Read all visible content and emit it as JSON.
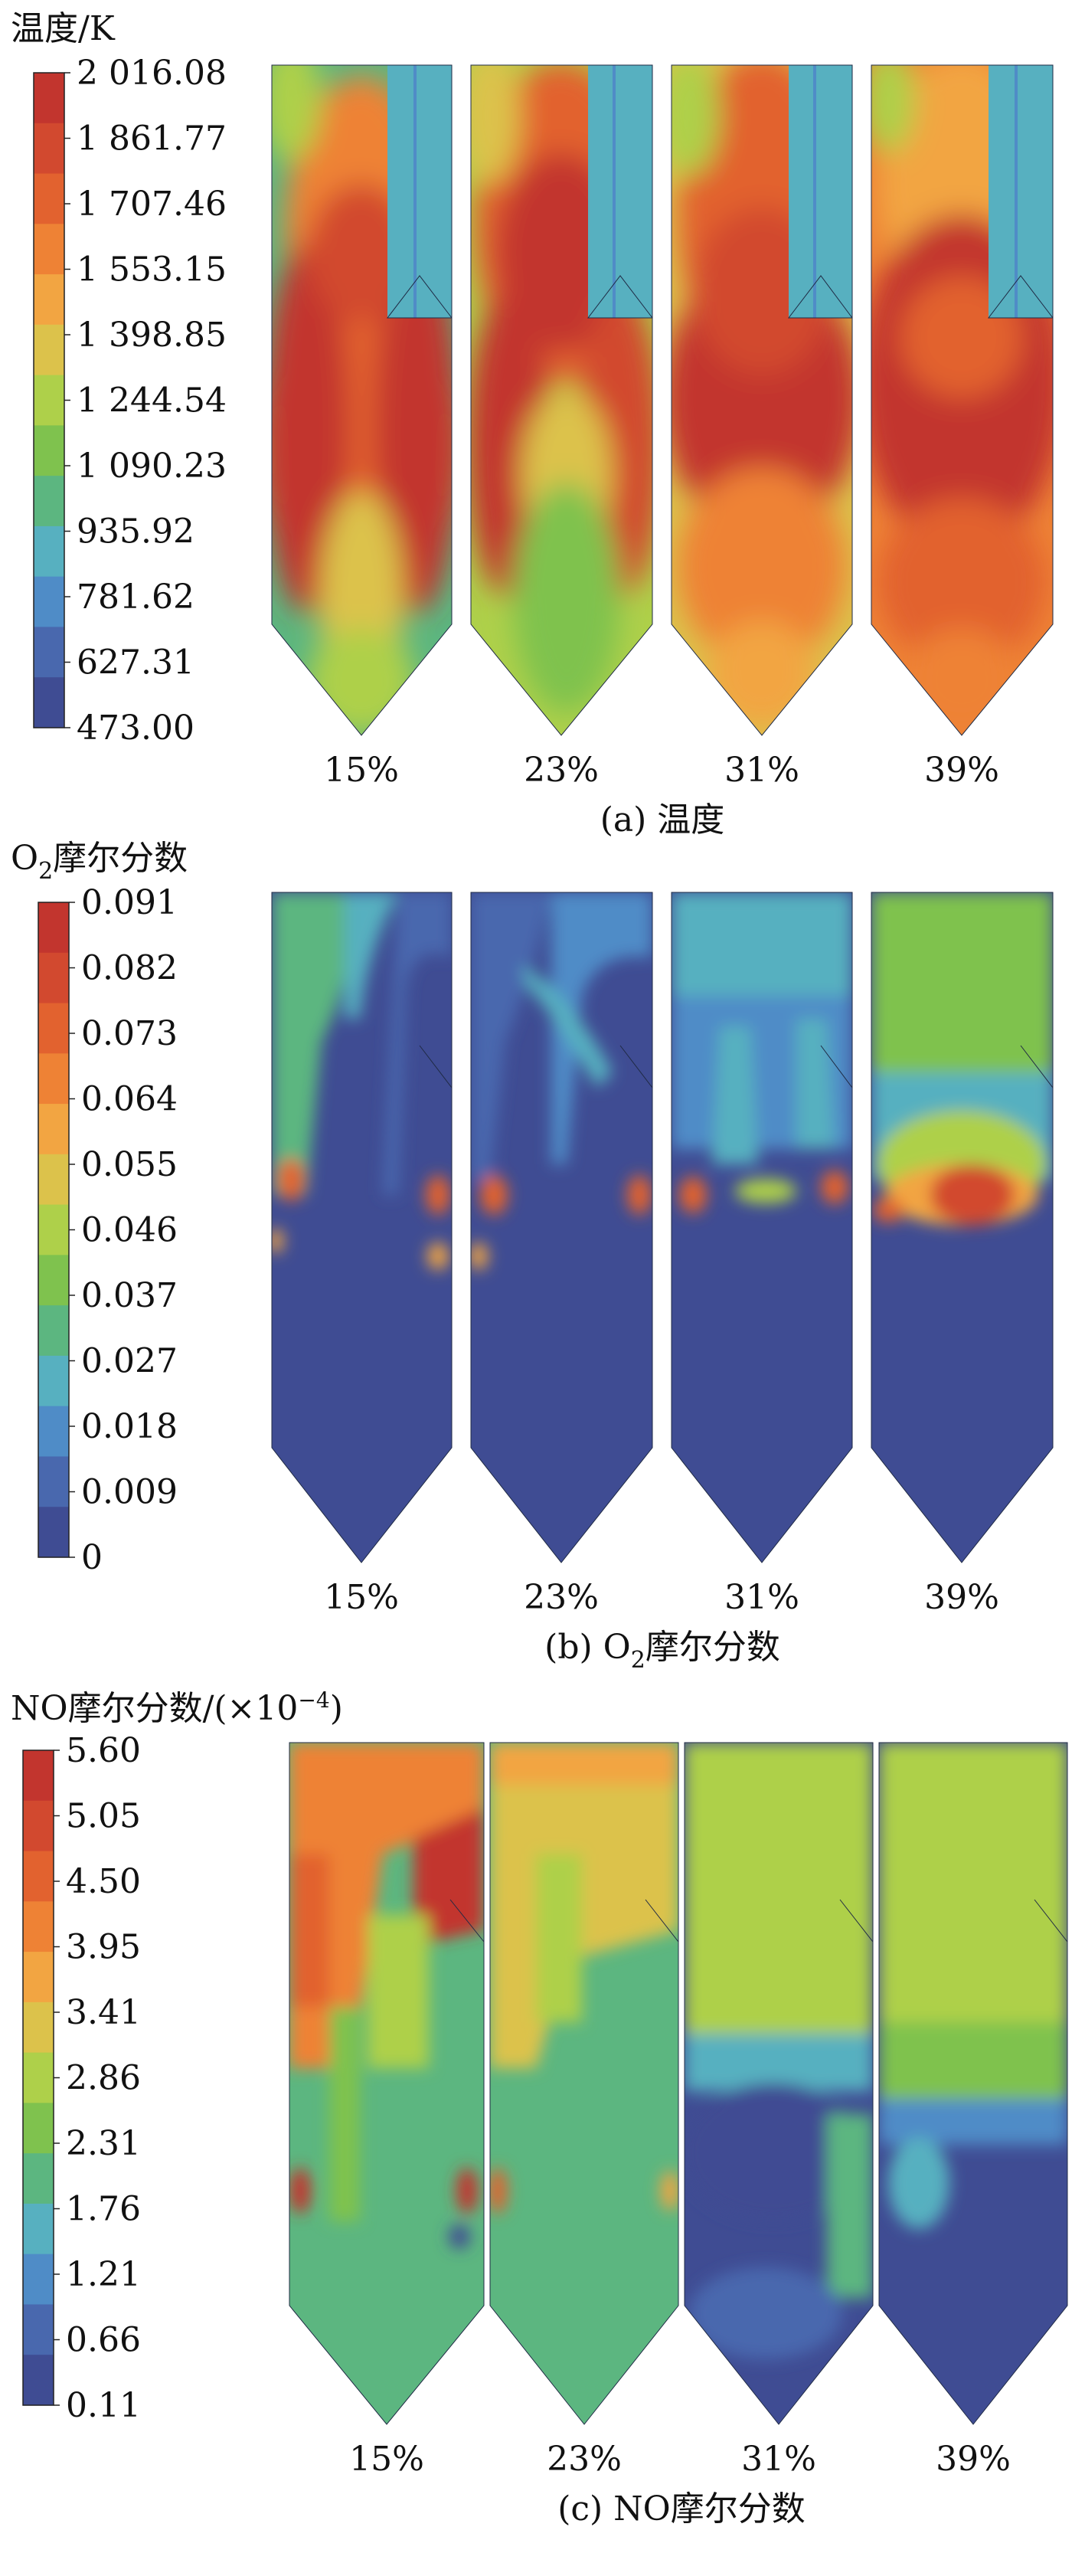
{
  "panels": [
    {
      "id": "a",
      "legend_title_prefix": "温度/K",
      "legend_title_sub": "",
      "legend_title_suffix": "",
      "legend_ticks": [
        "2 016.08",
        "1 861.77",
        "1 707.46",
        "1 553.15",
        "1 398.85",
        "1 244.54",
        "1 090.23",
        "935.92",
        "781.62",
        "627.31",
        "473.00"
      ],
      "labels": [
        "15%",
        "23%",
        "31%",
        "39%"
      ],
      "caption_prefix": "(a) 温度",
      "caption_sub": "",
      "caption_suffix": ""
    },
    {
      "id": "b",
      "legend_title_prefix": "O",
      "legend_title_sub": "2",
      "legend_title_suffix": "摩尔分数",
      "legend_ticks": [
        "0.091",
        "0.082",
        "0.073",
        "0.064",
        "0.055",
        "0.046",
        "0.037",
        "0.027",
        "0.018",
        "0.009",
        "0"
      ],
      "labels": [
        "15%",
        "23%",
        "31%",
        "39%"
      ],
      "caption_prefix": "(b) O",
      "caption_sub": "2",
      "caption_suffix": "摩尔分数"
    },
    {
      "id": "c",
      "legend_title_prefix": "NO摩尔分数/(×10",
      "legend_title_sub": "−4",
      "legend_title_suffix": ")",
      "legend_ticks": [
        "5.60",
        "5.05",
        "4.50",
        "3.95",
        "3.41",
        "2.86",
        "2.31",
        "1.76",
        "1.21",
        "0.66",
        "0.11"
      ],
      "labels": [
        "15%",
        "23%",
        "31%",
        "39%"
      ],
      "caption_prefix": "(c) NO摩尔分数",
      "caption_sub": "",
      "caption_suffix": ""
    }
  ],
  "colors": {
    "scale_high_to_low": [
      "#c2352e",
      "#d2492f",
      "#e2622f",
      "#ee8235",
      "#f2a542",
      "#dcc24b",
      "#aed04a",
      "#7fc24e",
      "#5cb680",
      "#57b0c0",
      "#4f8cc7",
      "#4968ae",
      "#3f4c93"
    ]
  }
}
